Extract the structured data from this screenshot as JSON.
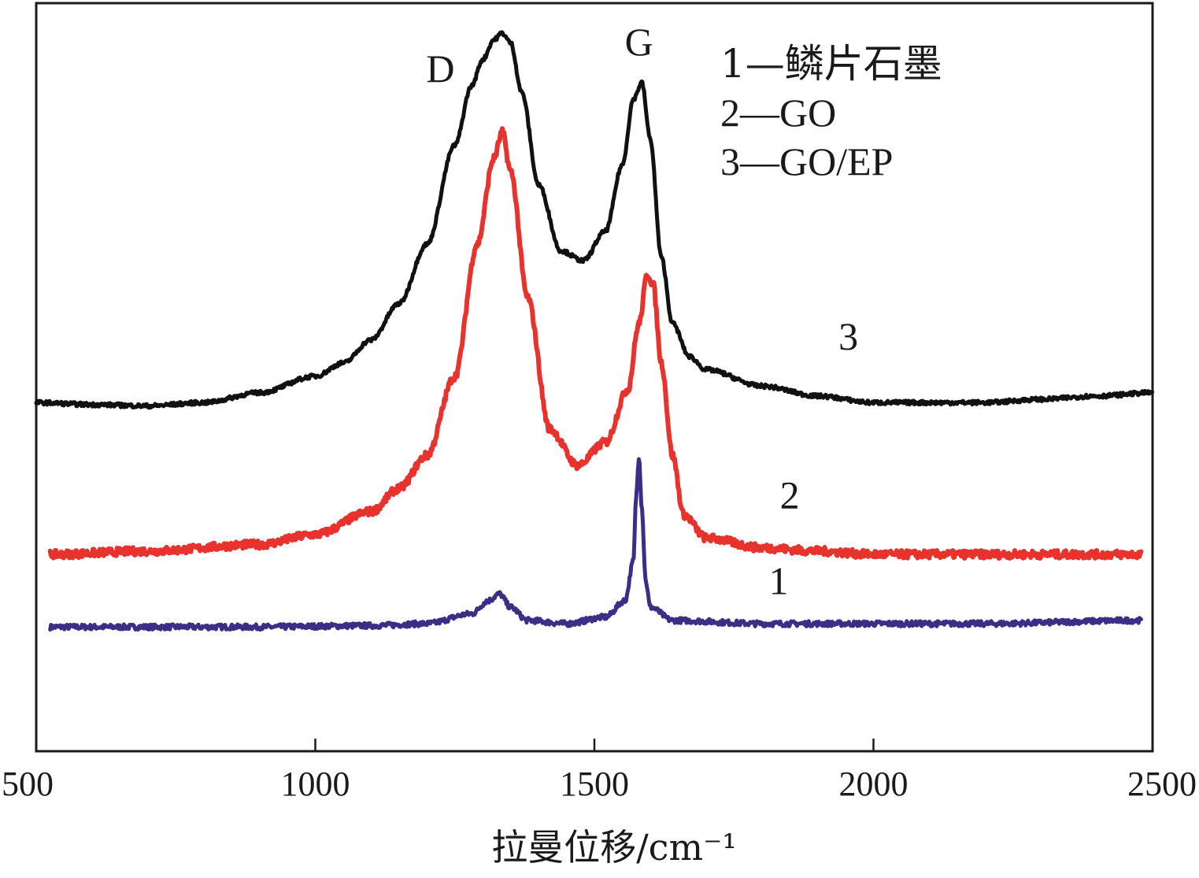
{
  "chart_data": {
    "type": "line",
    "title": "",
    "xlabel": "拉曼位移/cm⁻¹",
    "ylabel": "",
    "xlim": [
      500,
      2500
    ],
    "ylim": [
      0,
      1
    ],
    "grid": false,
    "x_ticks": [
      "500",
      "1000",
      "1500",
      "2000",
      "2500"
    ],
    "x_tick_values": [
      500,
      1000,
      1500,
      2000,
      2500
    ],
    "peak_labels": [
      {
        "text": "D",
        "x": 1330
      },
      {
        "text": "G",
        "x": 1580
      }
    ],
    "legend_position": "top-right",
    "legend": [
      {
        "text": "1—鳞片石墨",
        "series": "1"
      },
      {
        "text": "2—GO",
        "series": "2"
      },
      {
        "text": "3—GO/EP",
        "series": "3"
      }
    ],
    "series": [
      {
        "name": "1",
        "label": "1",
        "color": "#3b2e86",
        "label_x": 1830,
        "label_y": 0.15,
        "x": [
          525,
          700,
          900,
          1100,
          1200,
          1280,
          1310,
          1330,
          1350,
          1380,
          1450,
          1520,
          1555,
          1570,
          1575,
          1580,
          1585,
          1592,
          1600,
          1640,
          1800,
          2000,
          2200,
          2480
        ],
        "values": [
          0.1,
          0.1,
          0.1,
          0.102,
          0.105,
          0.12,
          0.14,
          0.15,
          0.13,
          0.11,
          0.105,
          0.115,
          0.14,
          0.2,
          0.3,
          0.36,
          0.28,
          0.17,
          0.13,
          0.11,
          0.105,
          0.105,
          0.105,
          0.11
        ]
      },
      {
        "name": "2",
        "label": "2",
        "color": "#e8322e",
        "label_x": 1850,
        "label_y": 0.28,
        "x": [
          525,
          700,
          900,
          1000,
          1100,
          1150,
          1200,
          1250,
          1290,
          1320,
          1335,
          1350,
          1380,
          1420,
          1470,
          1520,
          1560,
          1580,
          1595,
          1605,
          1620,
          1640,
          1660,
          1700,
          1800,
          1900,
          2000,
          2200,
          2480
        ],
        "values": [
          0.21,
          0.215,
          0.225,
          0.24,
          0.275,
          0.31,
          0.36,
          0.48,
          0.68,
          0.81,
          0.85,
          0.79,
          0.6,
          0.4,
          0.345,
          0.38,
          0.46,
          0.56,
          0.635,
          0.62,
          0.5,
          0.36,
          0.27,
          0.235,
          0.22,
          0.215,
          0.21,
          0.21,
          0.21
        ]
      },
      {
        "name": "3",
        "label": "3",
        "color": "#111111",
        "label_x": 1955,
        "label_y": 0.52,
        "x": [
          500,
          600,
          700,
          800,
          900,
          1000,
          1050,
          1100,
          1150,
          1200,
          1250,
          1280,
          1300,
          1320,
          1335,
          1350,
          1370,
          1400,
          1440,
          1480,
          1520,
          1550,
          1570,
          1585,
          1600,
          1620,
          1640,
          1670,
          1700,
          1800,
          1900,
          2000,
          2100,
          2200,
          2300,
          2400,
          2500
        ],
        "values": [
          0.44,
          0.437,
          0.435,
          0.44,
          0.455,
          0.48,
          0.5,
          0.535,
          0.59,
          0.68,
          0.83,
          0.92,
          0.96,
          0.99,
          1.0,
          0.985,
          0.91,
          0.77,
          0.67,
          0.655,
          0.7,
          0.8,
          0.9,
          0.925,
          0.84,
          0.66,
          0.56,
          0.51,
          0.49,
          0.465,
          0.45,
          0.44,
          0.44,
          0.44,
          0.445,
          0.45,
          0.455
        ]
      }
    ]
  }
}
